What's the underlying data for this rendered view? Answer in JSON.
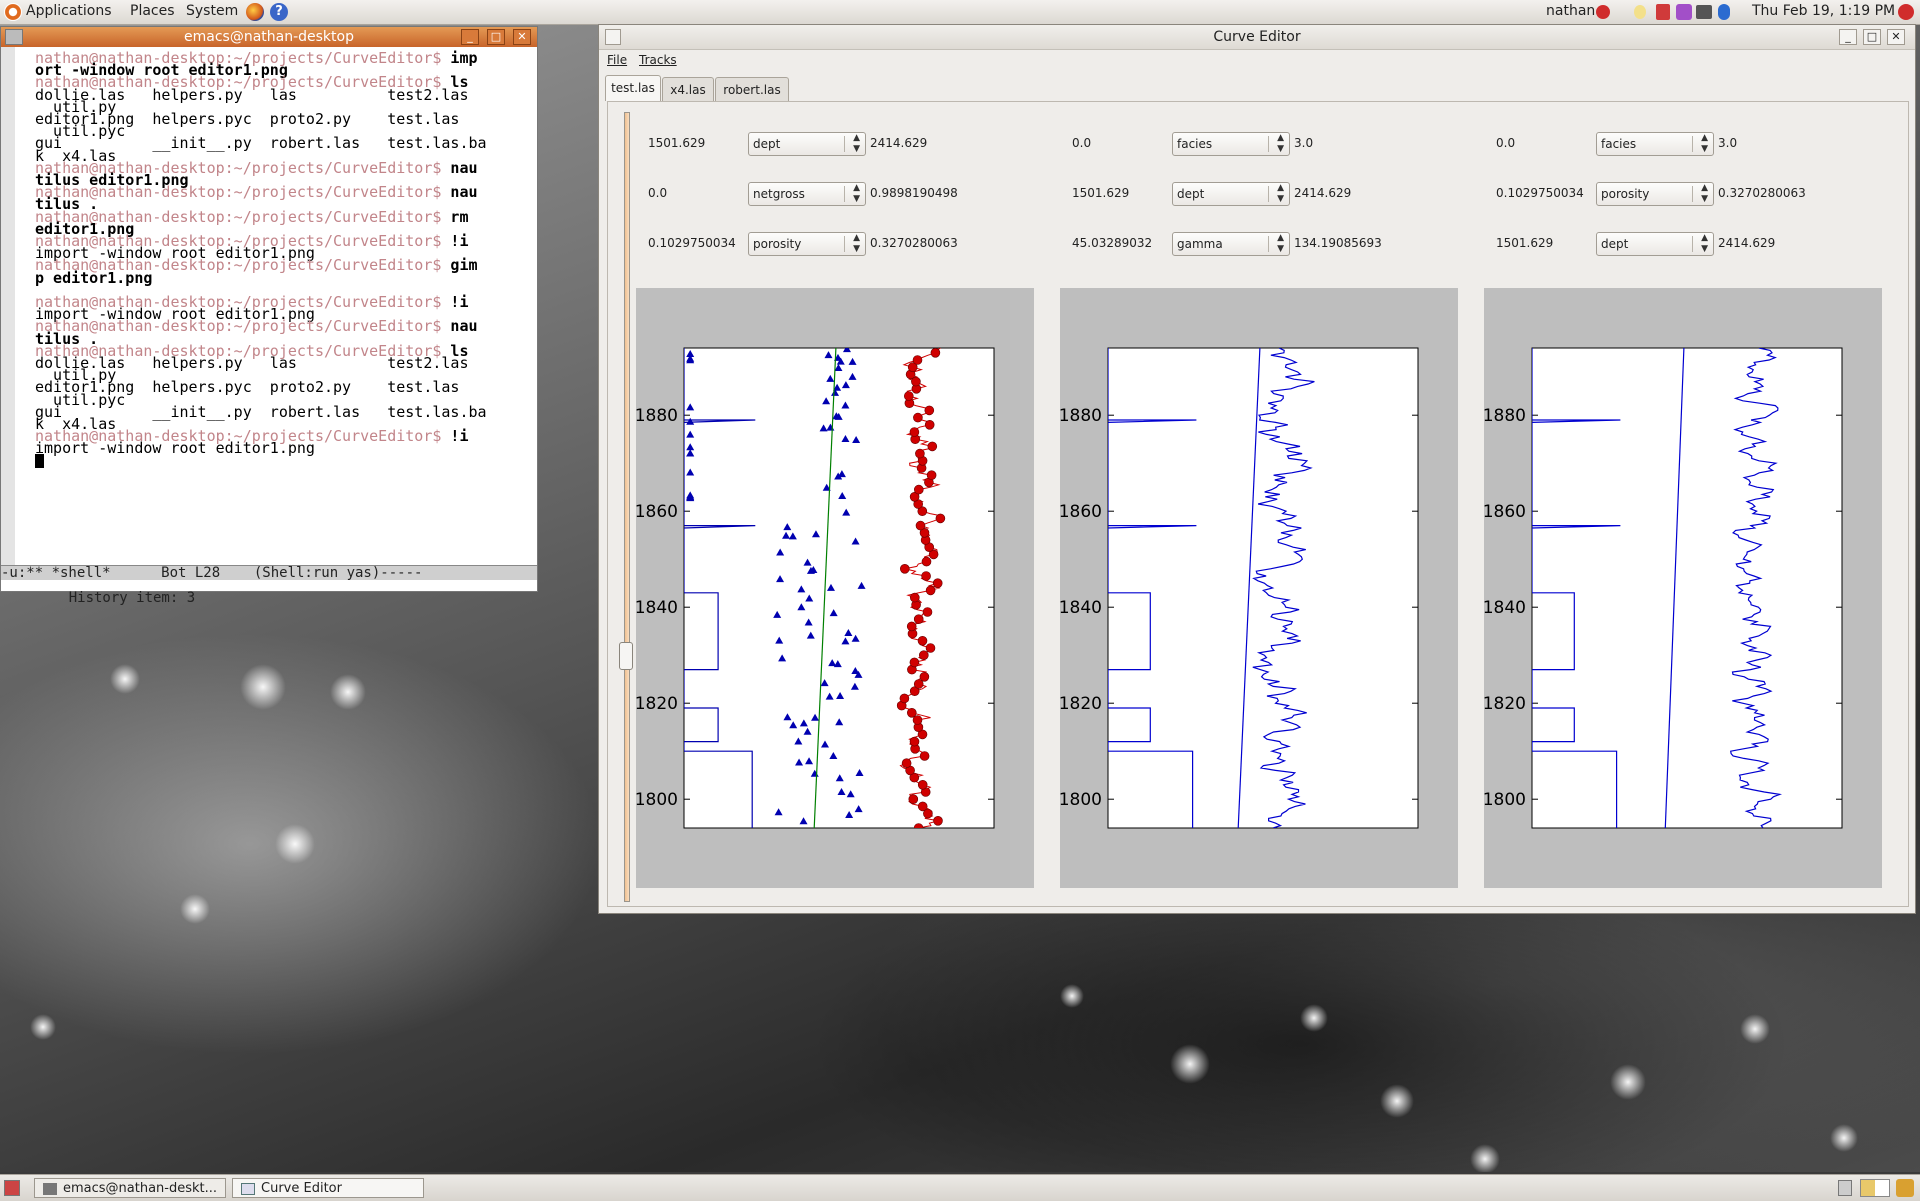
{
  "top_panel": {
    "menus": [
      "Applications",
      "Places",
      "System"
    ],
    "user": "nathan",
    "clock": "Thu Feb 19,  1:19 PM"
  },
  "taskbar": {
    "items": [
      "emacs@nathan-deskt...",
      "Curve Editor"
    ]
  },
  "emacs": {
    "title": "emacs@nathan-desktop",
    "prompt": "nathan@nathan-desktop:~/projects/CurveEditor$",
    "modeline": "-u:** *shell*      Bot L28    (Shell:run yas)-----",
    "minibuffer": "History item: 3",
    "lines": [
      {
        "p": true,
        "t": " imp"
      },
      {
        "p": false,
        "t": "ort -window root editor1.png",
        "bold": true
      },
      {
        "p": true,
        "t": " ls"
      },
      {
        "p": false,
        "t": "dollie.las   helpers.py   las          test2.las"
      },
      {
        "p": false,
        "t": "  util.py"
      },
      {
        "p": false,
        "t": "editor1.png  helpers.pyc  proto2.py    test.las"
      },
      {
        "p": false,
        "t": "  util.pyc"
      },
      {
        "p": false,
        "t": "gui          __init__.py  robert.las   test.las.ba"
      },
      {
        "p": false,
        "t": "k  x4.las"
      },
      {
        "p": true,
        "t": " nau"
      },
      {
        "p": false,
        "t": "tilus editor1.png",
        "bold": true
      },
      {
        "p": true,
        "t": " nau"
      },
      {
        "p": false,
        "t": "tilus .",
        "bold": true
      },
      {
        "p": true,
        "t": " rm"
      },
      {
        "p": false,
        "t": "editor1.png",
        "bold": true
      },
      {
        "p": true,
        "t": " !i"
      },
      {
        "p": false,
        "t": "import -window root editor1.png"
      },
      {
        "p": true,
        "t": " gim"
      },
      {
        "p": false,
        "t": "p editor1.png",
        "bold": true
      },
      {
        "p": false,
        "t": ""
      },
      {
        "p": true,
        "t": " !i"
      },
      {
        "p": false,
        "t": "import -window root editor1.png"
      },
      {
        "p": true,
        "t": " nau"
      },
      {
        "p": false,
        "t": "tilus .",
        "bold": true
      },
      {
        "p": true,
        "t": " ls"
      },
      {
        "p": false,
        "t": "dollie.las   helpers.py   las          test2.las"
      },
      {
        "p": false,
        "t": "  util.py"
      },
      {
        "p": false,
        "t": "editor1.png  helpers.pyc  proto2.py    test.las"
      },
      {
        "p": false,
        "t": "  util.pyc"
      },
      {
        "p": false,
        "t": "gui          __init__.py  robert.las   test.las.ba"
      },
      {
        "p": false,
        "t": "k  x4.las"
      },
      {
        "p": true,
        "t": " !i"
      },
      {
        "p": false,
        "t": "import -window root editor1.png"
      }
    ]
  },
  "curve_editor": {
    "title": "Curve Editor",
    "menu": [
      "File",
      "Tracks"
    ],
    "tabs": [
      "test.las",
      "x4.las",
      "robert.las"
    ],
    "active_tab": "test.las",
    "tracks": [
      {
        "controls": [
          {
            "min": "1501.629",
            "curve": "dept",
            "max": "2414.629"
          },
          {
            "min": "0.0",
            "curve": "netgross",
            "max": "0.9898190498"
          },
          {
            "min": "0.1029750034",
            "curve": "porosity",
            "max": "0.3270280063"
          }
        ]
      },
      {
        "controls": [
          {
            "min": "0.0",
            "curve": "facies",
            "max": "3.0"
          },
          {
            "min": "1501.629",
            "curve": "dept",
            "max": "2414.629"
          },
          {
            "min": "45.03289032",
            "curve": "gamma",
            "max": "134.19085693"
          }
        ]
      },
      {
        "controls": [
          {
            "min": "0.0",
            "curve": "facies",
            "max": "3.0"
          },
          {
            "min": "0.1029750034",
            "curve": "porosity",
            "max": "0.3270280063"
          },
          {
            "min": "1501.629",
            "curve": "dept",
            "max": "2414.629"
          }
        ]
      }
    ]
  },
  "chart_data": [
    {
      "type": "line",
      "title": "",
      "ylim": [
        1794,
        1894
      ],
      "yticks": [
        1800,
        1820,
        1840,
        1860,
        1880
      ],
      "series": [
        {
          "marker": "triangle",
          "color": "#0000b0",
          "values": "blocky near-zero baseline with spikes to ~0.5–0.6 in the 1800–1880 interval"
        },
        {
          "marker": "none",
          "color": "#008000",
          "values": "near-straight line from ~0.42 at 1794 to ~0.49 at 1894"
        },
        {
          "marker": "circle",
          "color": "#d00000",
          "values": "wiggly trace between ~0.6 and ~0.97"
        }
      ]
    },
    {
      "type": "line",
      "title": "",
      "ylim": [
        1794,
        1894
      ],
      "yticks": [
        1800,
        1820,
        1840,
        1860,
        1880
      ],
      "series": [
        {
          "marker": "none",
          "color": "#0000d0",
          "values": "step curve (facies)"
        },
        {
          "marker": "none",
          "color": "#0000d0",
          "values": "near-straight depth line"
        },
        {
          "marker": "none",
          "color": "#0000d0",
          "values": "wiggly gamma trace"
        }
      ]
    },
    {
      "type": "line",
      "title": "",
      "ylim": [
        1794,
        1894
      ],
      "yticks": [
        1800,
        1820,
        1840,
        1860,
        1880
      ],
      "series": [
        {
          "marker": "none",
          "color": "#0000d0",
          "values": "step curve (facies)"
        },
        {
          "marker": "none",
          "color": "#0000d0",
          "values": "wiggly porosity trace"
        },
        {
          "marker": "none",
          "color": "#0000d0",
          "values": "near-straight depth line"
        }
      ]
    }
  ],
  "colors": {
    "emacs_title": "#c8642a",
    "prompt": "#c2858a",
    "plot_blue": "#0000d0",
    "plot_red": "#d00000",
    "plot_green": "#008000"
  }
}
